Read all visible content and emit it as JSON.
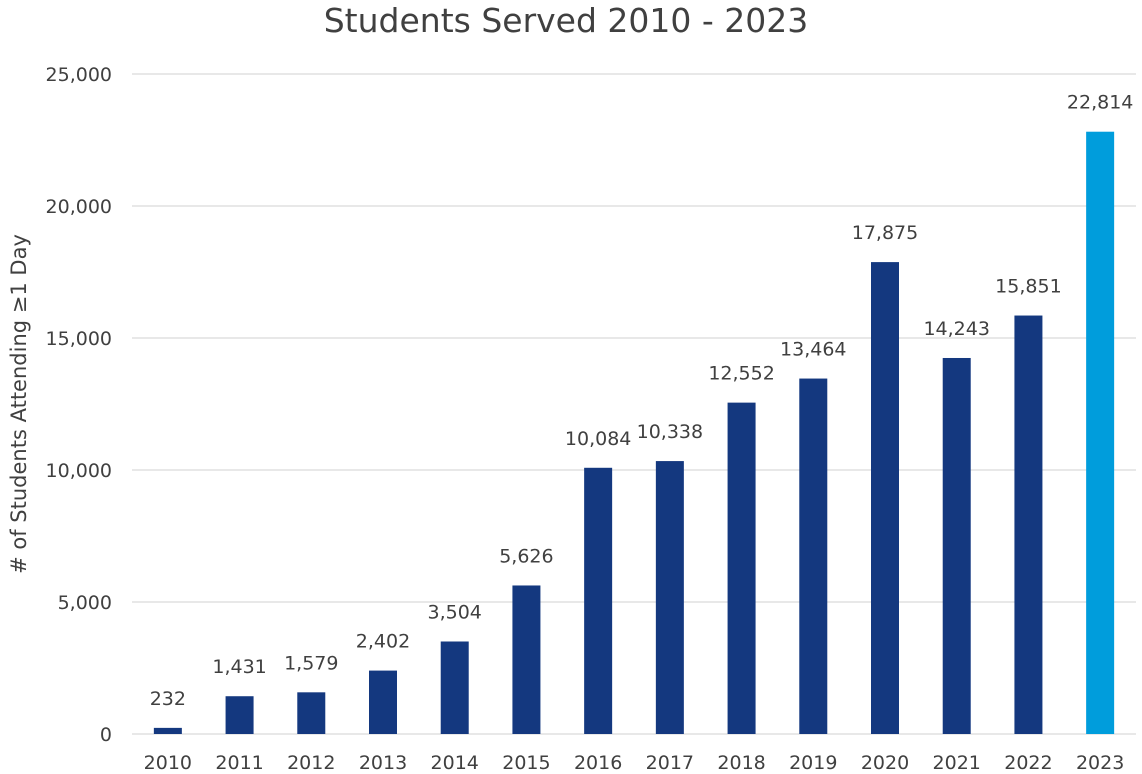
{
  "chart_data": {
    "type": "bar",
    "title": "Students Served 2010 - 2023",
    "xlabel": "",
    "ylabel": "# of Students Attending ≥1 Day",
    "categories": [
      "2010",
      "2011",
      "2012",
      "2013",
      "2014",
      "2015",
      "2016",
      "2017",
      "2018",
      "2019",
      "2020",
      "2021",
      "2022",
      "2023"
    ],
    "values": [
      232,
      1431,
      1579,
      2402,
      3504,
      5626,
      10084,
      10338,
      12552,
      13464,
      17875,
      14243,
      15851,
      22814
    ],
    "data_labels": [
      "232",
      "1,431",
      "1,579",
      "2,402",
      "3,504",
      "5,626",
      "10,084",
      "10,338",
      "12,552",
      "13,464",
      "17,875",
      "14,243",
      "15,851",
      "22,814"
    ],
    "ylim": [
      0,
      25000
    ],
    "yticks": [
      0,
      5000,
      10000,
      15000,
      20000,
      25000
    ],
    "ytick_labels": [
      "0",
      "5,000",
      "10,000",
      "15,000",
      "20,000",
      "25,000"
    ],
    "grid": true,
    "legend": "none",
    "colors": {
      "bar": "#14387f",
      "highlight_bar": "#009ddc",
      "highlight_category": "2023",
      "grid": "#d9d9d9",
      "text": "#404040"
    }
  }
}
